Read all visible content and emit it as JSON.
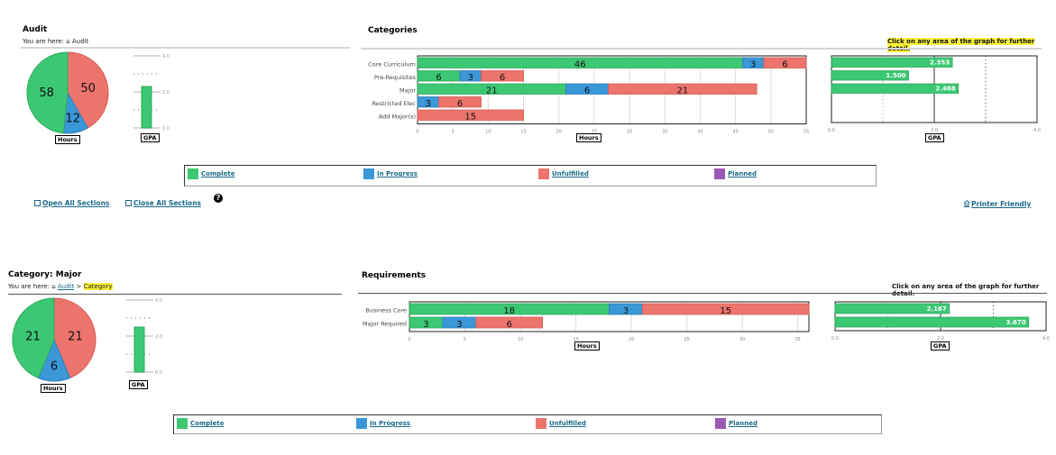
{
  "colors": {
    "complete": "#3cc873",
    "in_progress": "#3a97d8",
    "unfulfilled": "#ec746c",
    "planned": "#9b59b6",
    "link": "#1a6b8a",
    "highlight": "#fbf33a"
  },
  "audit": {
    "title": "Audit",
    "breadcrumb_prefix": "You are here:",
    "breadcrumb_home": "Audit",
    "pie": {
      "label": "Hours",
      "slices": [
        {
          "name": "Complete",
          "value": 58
        },
        {
          "name": "In Progress",
          "value": 12
        },
        {
          "name": "Unfulfilled",
          "value": 50
        }
      ]
    },
    "gpa_bar": {
      "label": "GPA",
      "value": 2.3,
      "ticks": [
        "4.0",
        "2.0",
        "0.0"
      ]
    }
  },
  "categories": {
    "title": "Categories",
    "note": "Click on any area of the graph for further detail.",
    "hours_label": "Hours",
    "gpa_label": "GPA",
    "hours_ticks": [
      "0",
      "5",
      "10",
      "15",
      "20",
      "25",
      "30",
      "35",
      "40",
      "45",
      "50",
      "55"
    ],
    "gpa_ticks": [
      "0.0",
      "2.0",
      "4.0"
    ],
    "rows": [
      {
        "name": "Core Curriculum",
        "complete": 46,
        "in_progress": 3,
        "unfulfilled": 6,
        "gpa": "2.353"
      },
      {
        "name": "Pre-Requisites",
        "complete": 6,
        "in_progress": 3,
        "unfulfilled": 6,
        "gpa": "1.500"
      },
      {
        "name": "Major",
        "complete": 21,
        "in_progress": 6,
        "unfulfilled": 21,
        "gpa": "2.468"
      },
      {
        "name": "Restricted Elec",
        "complete": 0,
        "in_progress": 3,
        "unfulfilled": 6,
        "gpa": ""
      },
      {
        "name": "Add Major(s)",
        "complete": 0,
        "in_progress": 0,
        "unfulfilled": 15,
        "gpa": ""
      }
    ]
  },
  "legend": [
    {
      "label": "Complete",
      "color": "#3cc873"
    },
    {
      "label": "In Progress",
      "color": "#3a97d8"
    },
    {
      "label": "Unfulfilled",
      "color": "#ec746c"
    },
    {
      "label": "Planned",
      "color": "#9b59b6"
    }
  ],
  "actions": {
    "open_all": "Open All Sections",
    "close_all": "Close All Sections",
    "help": "?",
    "printer": "Printer Friendly"
  },
  "category_major": {
    "title": "Category: Major",
    "breadcrumb_prefix": "You are here:",
    "breadcrumb_home": "Audit",
    "breadcrumb_sep": ">",
    "breadcrumb_current": "Category",
    "pie": {
      "label": "Hours",
      "slices": [
        {
          "name": "Complete",
          "value": 21
        },
        {
          "name": "In Progress",
          "value": 6
        },
        {
          "name": "Unfulfilled",
          "value": 21
        }
      ]
    },
    "gpa_bar": {
      "label": "GPA",
      "value": 2.5,
      "ticks": [
        "4.0",
        "2.0",
        "0.0"
      ]
    }
  },
  "requirements": {
    "title": "Requirements",
    "note": "Click on any area of the graph for further detail.",
    "hours_label": "Hours",
    "gpa_label": "GPA",
    "hours_ticks": [
      "0",
      "5",
      "10",
      "15",
      "20",
      "25",
      "30",
      "35"
    ],
    "gpa_ticks": [
      "0.0",
      "2.0",
      "4.0"
    ],
    "rows": [
      {
        "name": "Business Core",
        "complete": 18,
        "in_progress": 3,
        "unfulfilled": 15,
        "gpa": "2.167"
      },
      {
        "name": "Major Required",
        "complete": 3,
        "in_progress": 3,
        "unfulfilled": 6,
        "gpa": "3.670"
      }
    ]
  },
  "chart_data": [
    {
      "type": "pie",
      "title": "Audit Hours",
      "categories": [
        "Complete",
        "In Progress",
        "Unfulfilled"
      ],
      "values": [
        58,
        12,
        50
      ]
    },
    {
      "type": "bar",
      "title": "Audit GPA",
      "categories": [
        "GPA"
      ],
      "values": [
        2.3
      ],
      "ylim": [
        0,
        4
      ]
    },
    {
      "type": "bar",
      "title": "Categories Hours",
      "categories": [
        "Core Curriculum",
        "Pre-Requisites",
        "Major",
        "Restricted Elec",
        "Add Major(s)"
      ],
      "series": [
        {
          "name": "Complete",
          "values": [
            46,
            6,
            21,
            0,
            0
          ]
        },
        {
          "name": "In Progress",
          "values": [
            3,
            3,
            6,
            3,
            0
          ]
        },
        {
          "name": "Unfulfilled",
          "values": [
            6,
            6,
            21,
            6,
            15
          ]
        }
      ],
      "xlabel": "Hours",
      "xlim": [
        0,
        55
      ]
    },
    {
      "type": "bar",
      "title": "Categories GPA",
      "categories": [
        "Core Curriculum",
        "Pre-Requisites",
        "Major"
      ],
      "values": [
        2.353,
        1.5,
        2.468
      ],
      "xlabel": "GPA",
      "xlim": [
        0,
        4
      ]
    },
    {
      "type": "pie",
      "title": "Major Hours",
      "categories": [
        "Complete",
        "In Progress",
        "Unfulfilled"
      ],
      "values": [
        21,
        6,
        21
      ]
    },
    {
      "type": "bar",
      "title": "Major GPA",
      "categories": [
        "GPA"
      ],
      "values": [
        2.5
      ],
      "ylim": [
        0,
        4
      ]
    },
    {
      "type": "bar",
      "title": "Requirements Hours",
      "categories": [
        "Business Core",
        "Major Required"
      ],
      "series": [
        {
          "name": "Complete",
          "values": [
            18,
            3
          ]
        },
        {
          "name": "In Progress",
          "values": [
            3,
            3
          ]
        },
        {
          "name": "Unfulfilled",
          "values": [
            15,
            6
          ]
        }
      ],
      "xlabel": "Hours",
      "xlim": [
        0,
        36
      ]
    },
    {
      "type": "bar",
      "title": "Requirements GPA",
      "categories": [
        "Business Core",
        "Major Required"
      ],
      "values": [
        2.167,
        3.67
      ],
      "xlabel": "GPA",
      "xlim": [
        0,
        4
      ]
    }
  ]
}
